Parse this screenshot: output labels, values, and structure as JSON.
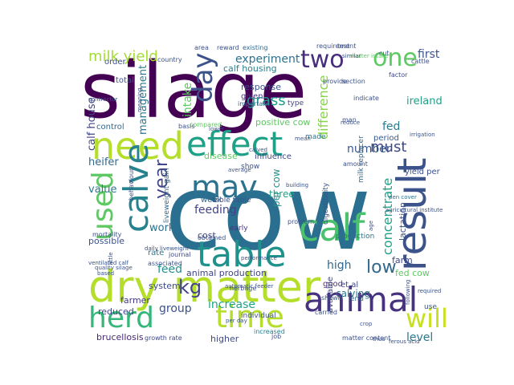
{
  "colors": {
    "background": "#ffffff",
    "palette": [
      "#440154",
      "#46327e",
      "#365c8d",
      "#277f8e",
      "#1fa187",
      "#4ac16d",
      "#a0da39",
      "#c4dd2a"
    ]
  },
  "words": [
    {
      "text": "silage",
      "color": "#440154"
    },
    {
      "text": "cow",
      "color": "#2a6f8f"
    },
    {
      "text": "dry matter",
      "color": "#b5de2b"
    },
    {
      "text": "need",
      "color": "#b5de2b"
    },
    {
      "text": "effect",
      "color": "#1fa187"
    },
    {
      "text": "table",
      "color": "#21918c"
    },
    {
      "text": "result",
      "color": "#3b528b"
    },
    {
      "text": "calf",
      "color": "#4ac16d"
    },
    {
      "text": "animal",
      "color": "#46327e"
    },
    {
      "text": "herd",
      "color": "#35b779"
    },
    {
      "text": "time",
      "color": "#b5de2b"
    },
    {
      "text": "calve",
      "color": "#26828e"
    },
    {
      "text": "used",
      "color": "#5ec962"
    },
    {
      "text": "may",
      "color": "#2c728e"
    },
    {
      "text": "day",
      "color": "#3b528b"
    },
    {
      "text": "two",
      "color": "#472d7b"
    },
    {
      "text": "one",
      "color": "#5ec962"
    },
    {
      "text": "will",
      "color": "#c8e020"
    },
    {
      "text": "kg",
      "color": "#414487"
    },
    {
      "text": "year",
      "color": "#404688"
    },
    {
      "text": "low",
      "color": "#31688e"
    },
    {
      "text": "milk yield",
      "color": "#a5db36"
    },
    {
      "text": "experiment",
      "color": "#2c728e"
    },
    {
      "text": "first",
      "color": "#3b528b"
    },
    {
      "text": "must",
      "color": "#3e4989"
    },
    {
      "text": "number",
      "color": "#38588c"
    },
    {
      "text": "fed",
      "color": "#287c8e"
    },
    {
      "text": "grass",
      "color": "#1f9e89"
    },
    {
      "text": "calf house",
      "color": "#404688"
    },
    {
      "text": "management",
      "color": "#2a788e"
    },
    {
      "text": "intake",
      "color": "#5ec962"
    },
    {
      "text": "difference",
      "color": "#86d549"
    },
    {
      "text": "concentrate",
      "color": "#1fa187"
    },
    {
      "text": "feeding",
      "color": "#414487"
    },
    {
      "text": "heifer",
      "color": "#31688e"
    },
    {
      "text": "value",
      "color": "#2a788e"
    },
    {
      "text": "work",
      "color": "#2c728e"
    },
    {
      "text": "feed",
      "color": "#21918c"
    },
    {
      "text": "group",
      "color": "#3b528b"
    },
    {
      "text": "increase",
      "color": "#20a486"
    },
    {
      "text": "level",
      "color": "#2a788e"
    },
    {
      "text": "high",
      "color": "#31688e"
    },
    {
      "text": "cost",
      "color": "#404688"
    },
    {
      "text": "system",
      "color": "#3e4a89"
    },
    {
      "text": "period",
      "color": "#38588c"
    },
    {
      "text": "calf housing",
      "color": "#277f8e"
    },
    {
      "text": "calving",
      "color": "#2a788e"
    },
    {
      "text": "brucellosis",
      "color": "#482878"
    },
    {
      "text": "positive cow",
      "color": "#5ec962"
    },
    {
      "text": "response",
      "color": "#3b528b"
    },
    {
      "text": "ireland",
      "color": "#1fa187"
    },
    {
      "text": "per cow",
      "color": "#21918c"
    },
    {
      "text": "lactation",
      "color": "#3b528b"
    },
    {
      "text": "animal production",
      "color": "#414487"
    },
    {
      "text": "higher",
      "color": "#3e4989"
    },
    {
      "text": "reduced",
      "color": "#404688"
    },
    {
      "text": "farmer",
      "color": "#443983"
    },
    {
      "text": "control",
      "color": "#31688e"
    },
    {
      "text": "total",
      "color": "#3b528b"
    },
    {
      "text": "order",
      "color": "#3b528b"
    },
    {
      "text": "given",
      "color": "#46327e"
    },
    {
      "text": "made",
      "color": "#2c728e"
    },
    {
      "text": "type",
      "color": "#414487"
    },
    {
      "text": "disease",
      "color": "#5ec962"
    },
    {
      "text": "influence",
      "color": "#3e4989"
    },
    {
      "text": "show",
      "color": "#3b528b"
    },
    {
      "text": "three",
      "color": "#20a486"
    },
    {
      "text": "week",
      "color": "#31688e"
    },
    {
      "text": "digestibility",
      "color": "#3b528b"
    },
    {
      "text": "production",
      "color": "#2c728e"
    },
    {
      "text": "available",
      "color": "#3e4989"
    },
    {
      "text": "good",
      "color": "#472d7b"
    },
    {
      "text": "et al",
      "color": "#3e4989"
    },
    {
      "text": "end",
      "color": "#31688e"
    },
    {
      "text": "farm",
      "color": "#3e4989"
    },
    {
      "text": "possible",
      "color": "#3b528b"
    },
    {
      "text": "rate",
      "color": "#2a788e"
    },
    {
      "text": "early",
      "color": "#46327e"
    },
    {
      "text": "journal",
      "color": "#3e4989"
    },
    {
      "text": "mortality",
      "color": "#3b528b"
    },
    {
      "text": "liveweight gain",
      "color": "#31688e"
    },
    {
      "text": "yield per",
      "color": "#3b528b"
    },
    {
      "text": "fed cow",
      "color": "#5ec962"
    },
    {
      "text": "table table",
      "color": "#3b528b"
    },
    {
      "text": "compared",
      "color": "#5ec962"
    },
    {
      "text": "growth rate",
      "color": "#3e4989"
    },
    {
      "text": "matter content",
      "color": "#3b528b"
    },
    {
      "text": "individual",
      "color": "#3b528b"
    },
    {
      "text": "increased",
      "color": "#277f8e"
    },
    {
      "text": "carried",
      "color": "#3b528b"
    },
    {
      "text": "milk replacer",
      "color": "#31688e"
    },
    {
      "text": "shown",
      "color": "#3b528b"
    },
    {
      "text": "use",
      "color": "#3b528b"
    },
    {
      "text": "cattle",
      "color": "#3b528b"
    },
    {
      "text": "cut",
      "color": "#3b528b"
    },
    {
      "text": "factor",
      "color": "#3e4989"
    },
    {
      "text": "test",
      "color": "#3b528b"
    },
    {
      "text": "matter intake",
      "color": "#5ec962"
    },
    {
      "text": "existing",
      "color": "#31688e"
    },
    {
      "text": "area",
      "color": "#3b528b"
    },
    {
      "text": "reward",
      "color": "#3b528b"
    },
    {
      "text": "country",
      "color": "#3b528b"
    },
    {
      "text": "important",
      "color": "#31688e"
    },
    {
      "text": "provide",
      "color": "#3b528b"
    },
    {
      "text": "section",
      "color": "#3b528b"
    },
    {
      "text": "indicate",
      "color": "#3b528b"
    },
    {
      "text": "requirement",
      "color": "#3b528b"
    },
    {
      "text": "basis",
      "color": "#3b528b"
    },
    {
      "text": "mean",
      "color": "#3b528b"
    },
    {
      "text": "lower",
      "color": "#3b528b"
    },
    {
      "text": "average",
      "color": "#3b528b"
    },
    {
      "text": "building",
      "color": "#3b528b"
    },
    {
      "text": "calved",
      "color": "#3b528b"
    },
    {
      "text": "amount",
      "color": "#3b528b"
    },
    {
      "text": "reduce",
      "color": "#3b528b"
    },
    {
      "text": "problem",
      "color": "#3b528b"
    },
    {
      "text": "man",
      "color": "#3b528b"
    },
    {
      "text": "age",
      "color": "#3b528b"
    },
    {
      "text": "pen cover",
      "color": "#2c728e"
    },
    {
      "text": "agricultural institute",
      "color": "#3b528b"
    },
    {
      "text": "behaviour",
      "color": "#3b528b"
    },
    {
      "text": "associated",
      "color": "#3b528b"
    },
    {
      "text": "obtained",
      "color": "#3b528b"
    },
    {
      "text": "herbage",
      "color": "#3b528b"
    },
    {
      "text": "per day",
      "color": "#3b528b"
    },
    {
      "text": "job",
      "color": "#3b528b"
    },
    {
      "text": "thus",
      "color": "#3b528b"
    },
    {
      "text": "crop",
      "color": "#3b528b"
    },
    {
      "text": "following",
      "color": "#3b528b"
    },
    {
      "text": "required",
      "color": "#3b528b"
    },
    {
      "text": "performance",
      "color": "#3b528b"
    },
    {
      "text": "automatic feeder",
      "color": "#3b528b"
    },
    {
      "text": "little",
      "color": "#3b528b"
    },
    {
      "text": "ventilated calf",
      "color": "#3b528b"
    },
    {
      "text": "based",
      "color": "#3b528b"
    },
    {
      "text": "quality silage",
      "color": "#3b528b"
    },
    {
      "text": "daily liveweight",
      "color": "#3b528b"
    },
    {
      "text": "contractor",
      "color": "#3b528b"
    },
    {
      "text": "meaning",
      "color": "#3b528b"
    },
    {
      "text": "similar",
      "color": "#3b528b"
    },
    {
      "text": "irrigation",
      "color": "#3b528b"
    },
    {
      "text": "ferous acid",
      "color": "#3b528b"
    },
    {
      "text": "naturally ventilated",
      "color": "#3b528b"
    },
    {
      "text": "lamb",
      "color": "#3b528b"
    },
    {
      "text": "culling",
      "color": "#3b528b"
    },
    {
      "text": "calf level",
      "color": "#3b528b"
    }
  ]
}
